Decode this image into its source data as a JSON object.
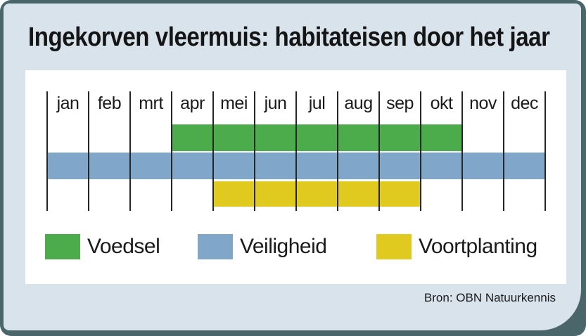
{
  "header": {
    "title": "Ingekorven vleermuis: habitateisen door het jaar"
  },
  "footer": {
    "source": "Bron: OBN Natuurkennis"
  },
  "colors": {
    "frame": "#4a666b",
    "card_background": "#d8e3ec",
    "panel_background": "#ffffff",
    "grid_line": "#262626",
    "text": "#1a1a1a",
    "voedsel_green": "#4cac4b",
    "veiligheid_blue": "#80a7ca",
    "voortplanting_yellow": "#e0ca1f"
  },
  "chart_data": {
    "type": "timeline",
    "title": "Ingekorven vleermuis: habitateisen door het jaar",
    "categories": [
      "jan",
      "feb",
      "mrt",
      "apr",
      "mei",
      "jun",
      "jul",
      "aug",
      "sep",
      "okt",
      "nov",
      "dec"
    ],
    "series": [
      {
        "name": "Voedsel",
        "color": "#4cac4b",
        "start_month": "apr",
        "end_month": "okt",
        "start_index": 3,
        "end_index": 9
      },
      {
        "name": "Veiligheid",
        "color": "#80a7ca",
        "start_month": "jan",
        "end_month": "dec",
        "start_index": 0,
        "end_index": 11
      },
      {
        "name": "Voortplanting",
        "color": "#e0ca1f",
        "start_month": "mei",
        "end_month": "sep",
        "start_index": 4,
        "end_index": 8
      }
    ],
    "legend": [
      "Voedsel",
      "Veiligheid",
      "Voortplanting"
    ],
    "legend_position": "bottom",
    "grid": "vertical-month-boundaries"
  }
}
